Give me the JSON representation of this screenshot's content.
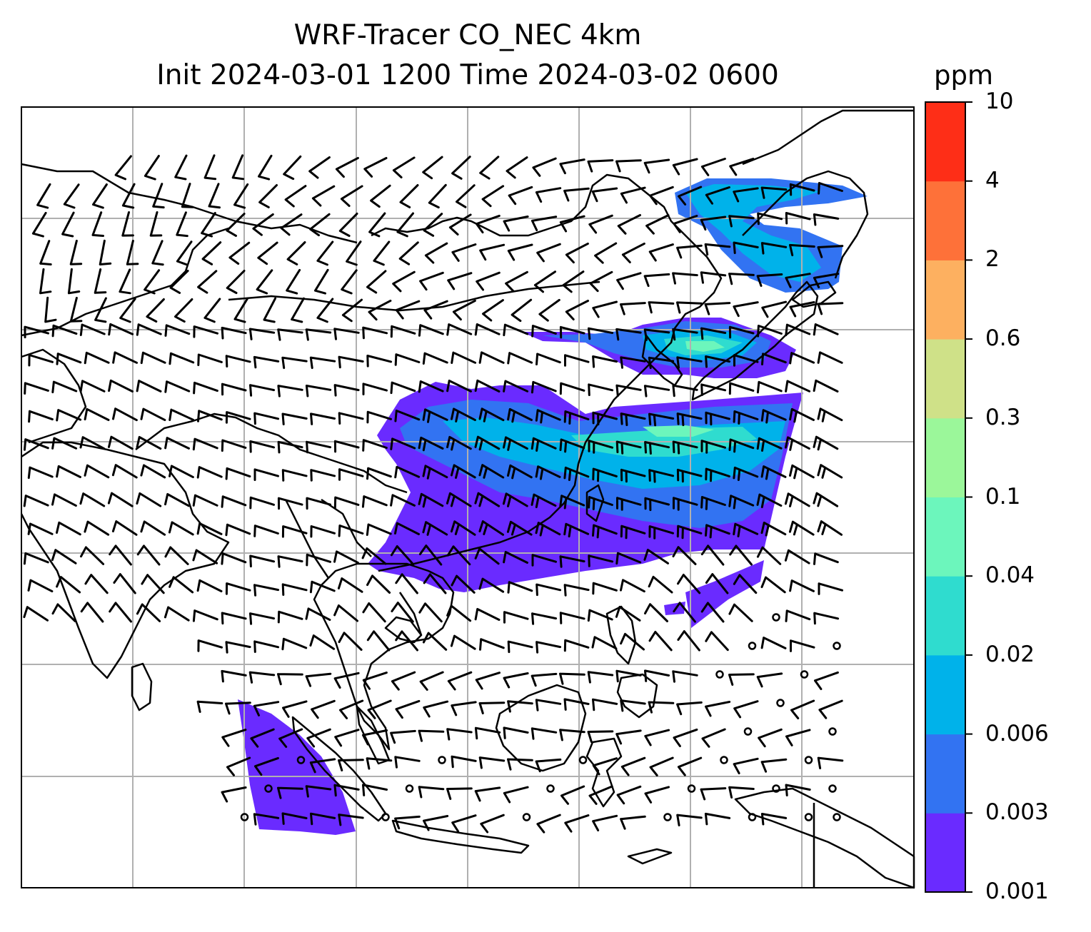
{
  "title": {
    "line1": "WRF-Tracer CO_NEC 4km",
    "line2": "Init 2024-03-01 1200 Time 2024-03-02 0600"
  },
  "colorbar": {
    "unit": "ppm",
    "levels": [
      "0.001",
      "0.003",
      "0.006",
      "0.02",
      "0.04",
      "0.1",
      "0.3",
      "0.6",
      "2",
      "4",
      "10"
    ],
    "colors": [
      "#6a2bff",
      "#3273f2",
      "#00b2ea",
      "#2fdccf",
      "#6cf6bc",
      "#9bf79a",
      "#cfe188",
      "#fdb060",
      "#fe7139",
      "#fe2e17"
    ]
  },
  "map": {
    "gridlines": true,
    "overlay": "wind barbs",
    "coastline_color": "#000000",
    "gridline_color": "#b0b0b0"
  }
}
